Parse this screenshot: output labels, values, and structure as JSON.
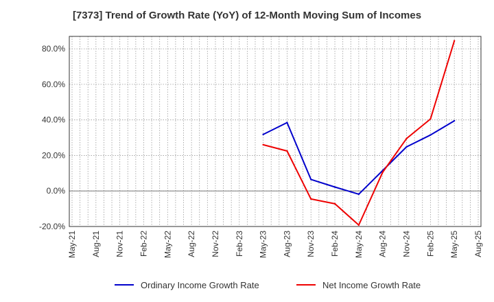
{
  "chart_data": {
    "type": "line",
    "title": "[7373]  Trend of Growth Rate (YoY) of 12-Month Moving Sum of Incomes",
    "xlabel": "",
    "ylabel": "",
    "x": [
      "May-21",
      "Aug-21",
      "Nov-21",
      "Feb-22",
      "May-22",
      "Aug-22",
      "Nov-22",
      "Feb-23",
      "May-23",
      "Aug-23",
      "Nov-23",
      "Feb-24",
      "May-24",
      "Aug-24",
      "Nov-24",
      "Feb-25",
      "May-25",
      "Aug-25"
    ],
    "ylim": [
      -20,
      87
    ],
    "yticks": [
      -20,
      0,
      20,
      40,
      60,
      80
    ],
    "ytick_labels": [
      "-20.0%",
      "0.0%",
      "20.0%",
      "40.0%",
      "60.0%",
      "80.0%"
    ],
    "grid": true,
    "legend_position": "bottom",
    "series": [
      {
        "name": "Ordinary Income Growth Rate",
        "color": "#0000cc",
        "values": [
          null,
          null,
          null,
          null,
          null,
          null,
          null,
          null,
          31.8,
          38.5,
          6.5,
          2.2,
          -1.8,
          11.5,
          24.8,
          31.5,
          39.5,
          null
        ]
      },
      {
        "name": "Net Income Growth Rate",
        "color": "#ee0000",
        "values": [
          null,
          null,
          null,
          null,
          null,
          null,
          null,
          null,
          26.0,
          22.5,
          -4.5,
          -7.2,
          -19.2,
          10.5,
          29.5,
          40.5,
          84.5,
          null
        ]
      }
    ]
  }
}
